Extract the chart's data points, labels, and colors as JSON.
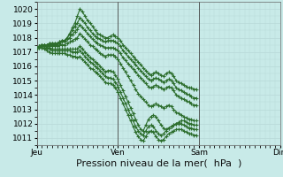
{
  "background_color": "#c8eae8",
  "grid_color": "#b8d8d8",
  "line_color": "#2d6e2d",
  "marker": "+",
  "markersize": 3,
  "linewidth": 0.8,
  "ylim": [
    1010.5,
    1020.5
  ],
  "yticks": [
    1011,
    1012,
    1013,
    1014,
    1015,
    1016,
    1017,
    1018,
    1019,
    1020
  ],
  "xlabel": "Pression niveau de la mer(  hPa  )",
  "xlabel_fontsize": 8,
  "tick_fontsize": 6.5,
  "day_labels": [
    "Jeu",
    "Ven",
    "Sam",
    "Dim"
  ],
  "day_positions": [
    0,
    32,
    64,
    96
  ],
  "series": [
    [
      1017.3,
      1017.4,
      1017.5,
      1017.5,
      1017.5,
      1017.6,
      1017.6,
      1017.6,
      1017.6,
      1017.7,
      1017.8,
      1017.8,
      1018.0,
      1018.3,
      1018.7,
      1019.0,
      1019.5,
      1020.0,
      1019.8,
      1019.5,
      1019.2,
      1019.0,
      1018.8,
      1018.5,
      1018.3,
      1018.2,
      1018.1,
      1018.0,
      1018.0,
      1018.1,
      1018.2,
      1018.1,
      1018.0,
      1017.8,
      1017.5,
      1017.3,
      1017.1,
      1016.9,
      1016.7,
      1016.5,
      1016.3,
      1016.1,
      1015.9,
      1015.7,
      1015.5,
      1015.4,
      1015.5,
      1015.6,
      1015.5,
      1015.4,
      1015.3,
      1015.5,
      1015.6,
      1015.5,
      1015.3,
      1015.0,
      1014.9,
      1014.8,
      1014.7,
      1014.6,
      1014.5,
      1014.5,
      1014.4,
      1014.4
    ],
    [
      1017.3,
      1017.4,
      1017.5,
      1017.5,
      1017.5,
      1017.6,
      1017.6,
      1017.6,
      1017.6,
      1017.7,
      1017.8,
      1017.8,
      1018.0,
      1018.2,
      1018.5,
      1018.8,
      1019.0,
      1019.4,
      1019.2,
      1019.0,
      1018.7,
      1018.5,
      1018.3,
      1018.1,
      1018.0,
      1017.9,
      1017.8,
      1017.7,
      1017.8,
      1017.8,
      1017.8,
      1017.7,
      1017.6,
      1017.4,
      1017.1,
      1016.9,
      1016.7,
      1016.5,
      1016.3,
      1016.1,
      1015.9,
      1015.7,
      1015.5,
      1015.3,
      1015.1,
      1015.0,
      1015.1,
      1015.2,
      1015.1,
      1015.0,
      1014.9,
      1015.0,
      1015.1,
      1015.0,
      1014.8,
      1014.5,
      1014.4,
      1014.3,
      1014.2,
      1014.1,
      1014.0,
      1013.9,
      1013.8,
      1013.8
    ],
    [
      1017.3,
      1017.4,
      1017.5,
      1017.5,
      1017.5,
      1017.5,
      1017.5,
      1017.5,
      1017.5,
      1017.6,
      1017.7,
      1017.7,
      1017.9,
      1018.0,
      1018.2,
      1018.4,
      1018.6,
      1018.9,
      1018.7,
      1018.5,
      1018.3,
      1018.1,
      1017.9,
      1017.7,
      1017.6,
      1017.5,
      1017.4,
      1017.3,
      1017.3,
      1017.3,
      1017.3,
      1017.2,
      1017.1,
      1016.9,
      1016.6,
      1016.4,
      1016.2,
      1016.0,
      1015.8,
      1015.6,
      1015.4,
      1015.2,
      1015.0,
      1014.8,
      1014.6,
      1014.5,
      1014.6,
      1014.7,
      1014.6,
      1014.5,
      1014.4,
      1014.5,
      1014.6,
      1014.5,
      1014.3,
      1014.0,
      1013.9,
      1013.8,
      1013.7,
      1013.6,
      1013.5,
      1013.4,
      1013.3,
      1013.3
    ],
    [
      1017.3,
      1017.4,
      1017.5,
      1017.5,
      1017.4,
      1017.4,
      1017.4,
      1017.4,
      1017.4,
      1017.5,
      1017.5,
      1017.5,
      1017.6,
      1017.7,
      1017.8,
      1017.9,
      1018.0,
      1018.3,
      1018.1,
      1017.9,
      1017.7,
      1017.5,
      1017.4,
      1017.2,
      1017.1,
      1016.9,
      1016.8,
      1016.7,
      1016.8,
      1016.8,
      1016.8,
      1016.7,
      1016.5,
      1016.2,
      1015.9,
      1015.6,
      1015.3,
      1015.0,
      1014.7,
      1014.4,
      1014.1,
      1013.9,
      1013.7,
      1013.5,
      1013.3,
      1013.2,
      1013.3,
      1013.4,
      1013.3,
      1013.2,
      1013.1,
      1013.2,
      1013.3,
      1013.2,
      1013.0,
      1012.8,
      1012.7,
      1012.6,
      1012.5,
      1012.4,
      1012.3,
      1012.3,
      1012.2,
      1012.2
    ],
    [
      1017.3,
      1017.4,
      1017.4,
      1017.4,
      1017.3,
      1017.3,
      1017.2,
      1017.2,
      1017.2,
      1017.2,
      1017.2,
      1017.2,
      1017.2,
      1017.2,
      1017.2,
      1017.2,
      1017.2,
      1017.4,
      1017.2,
      1017.0,
      1016.8,
      1016.6,
      1016.5,
      1016.3,
      1016.2,
      1016.0,
      1015.8,
      1015.6,
      1015.7,
      1015.7,
      1015.6,
      1015.4,
      1015.1,
      1014.7,
      1014.3,
      1013.9,
      1013.5,
      1013.1,
      1012.7,
      1012.3,
      1011.9,
      1011.6,
      1011.5,
      1011.9,
      1012.3,
      1012.5,
      1012.6,
      1012.5,
      1012.2,
      1011.9,
      1011.7,
      1011.6,
      1011.7,
      1011.8,
      1011.9,
      1012.0,
      1012.1,
      1012.2,
      1012.2,
      1012.1,
      1012.0,
      1012.0,
      1011.9,
      1011.9
    ],
    [
      1017.3,
      1017.3,
      1017.3,
      1017.3,
      1017.2,
      1017.2,
      1017.1,
      1017.1,
      1017.1,
      1017.1,
      1017.1,
      1017.1,
      1017.1,
      1017.1,
      1017.0,
      1017.0,
      1017.0,
      1017.1,
      1016.9,
      1016.7,
      1016.5,
      1016.3,
      1016.2,
      1016.0,
      1015.9,
      1015.7,
      1015.5,
      1015.3,
      1015.2,
      1015.2,
      1015.1,
      1014.9,
      1014.6,
      1014.2,
      1013.8,
      1013.4,
      1013.0,
      1012.6,
      1012.2,
      1011.8,
      1011.5,
      1011.3,
      1011.2,
      1011.5,
      1011.8,
      1011.9,
      1011.8,
      1011.5,
      1011.3,
      1011.2,
      1011.3,
      1011.5,
      1011.7,
      1011.8,
      1011.9,
      1012.0,
      1012.0,
      1012.0,
      1011.9,
      1011.8,
      1011.7,
      1011.7,
      1011.6,
      1011.6
    ],
    [
      1017.3,
      1017.3,
      1017.3,
      1017.2,
      1017.1,
      1017.0,
      1016.9,
      1016.9,
      1016.9,
      1016.9,
      1016.9,
      1016.9,
      1016.8,
      1016.8,
      1016.7,
      1016.7,
      1016.6,
      1016.7,
      1016.5,
      1016.3,
      1016.1,
      1015.9,
      1015.8,
      1015.6,
      1015.5,
      1015.3,
      1015.1,
      1014.9,
      1014.8,
      1014.8,
      1014.7,
      1014.5,
      1014.2,
      1013.8,
      1013.4,
      1013.0,
      1012.6,
      1012.2,
      1011.8,
      1011.4,
      1011.1,
      1010.9,
      1010.8,
      1011.1,
      1011.4,
      1011.5,
      1011.4,
      1011.1,
      1010.9,
      1010.8,
      1010.9,
      1011.1,
      1011.3,
      1011.4,
      1011.5,
      1011.6,
      1011.6,
      1011.6,
      1011.5,
      1011.4,
      1011.3,
      1011.3,
      1011.2,
      1011.2
    ]
  ]
}
